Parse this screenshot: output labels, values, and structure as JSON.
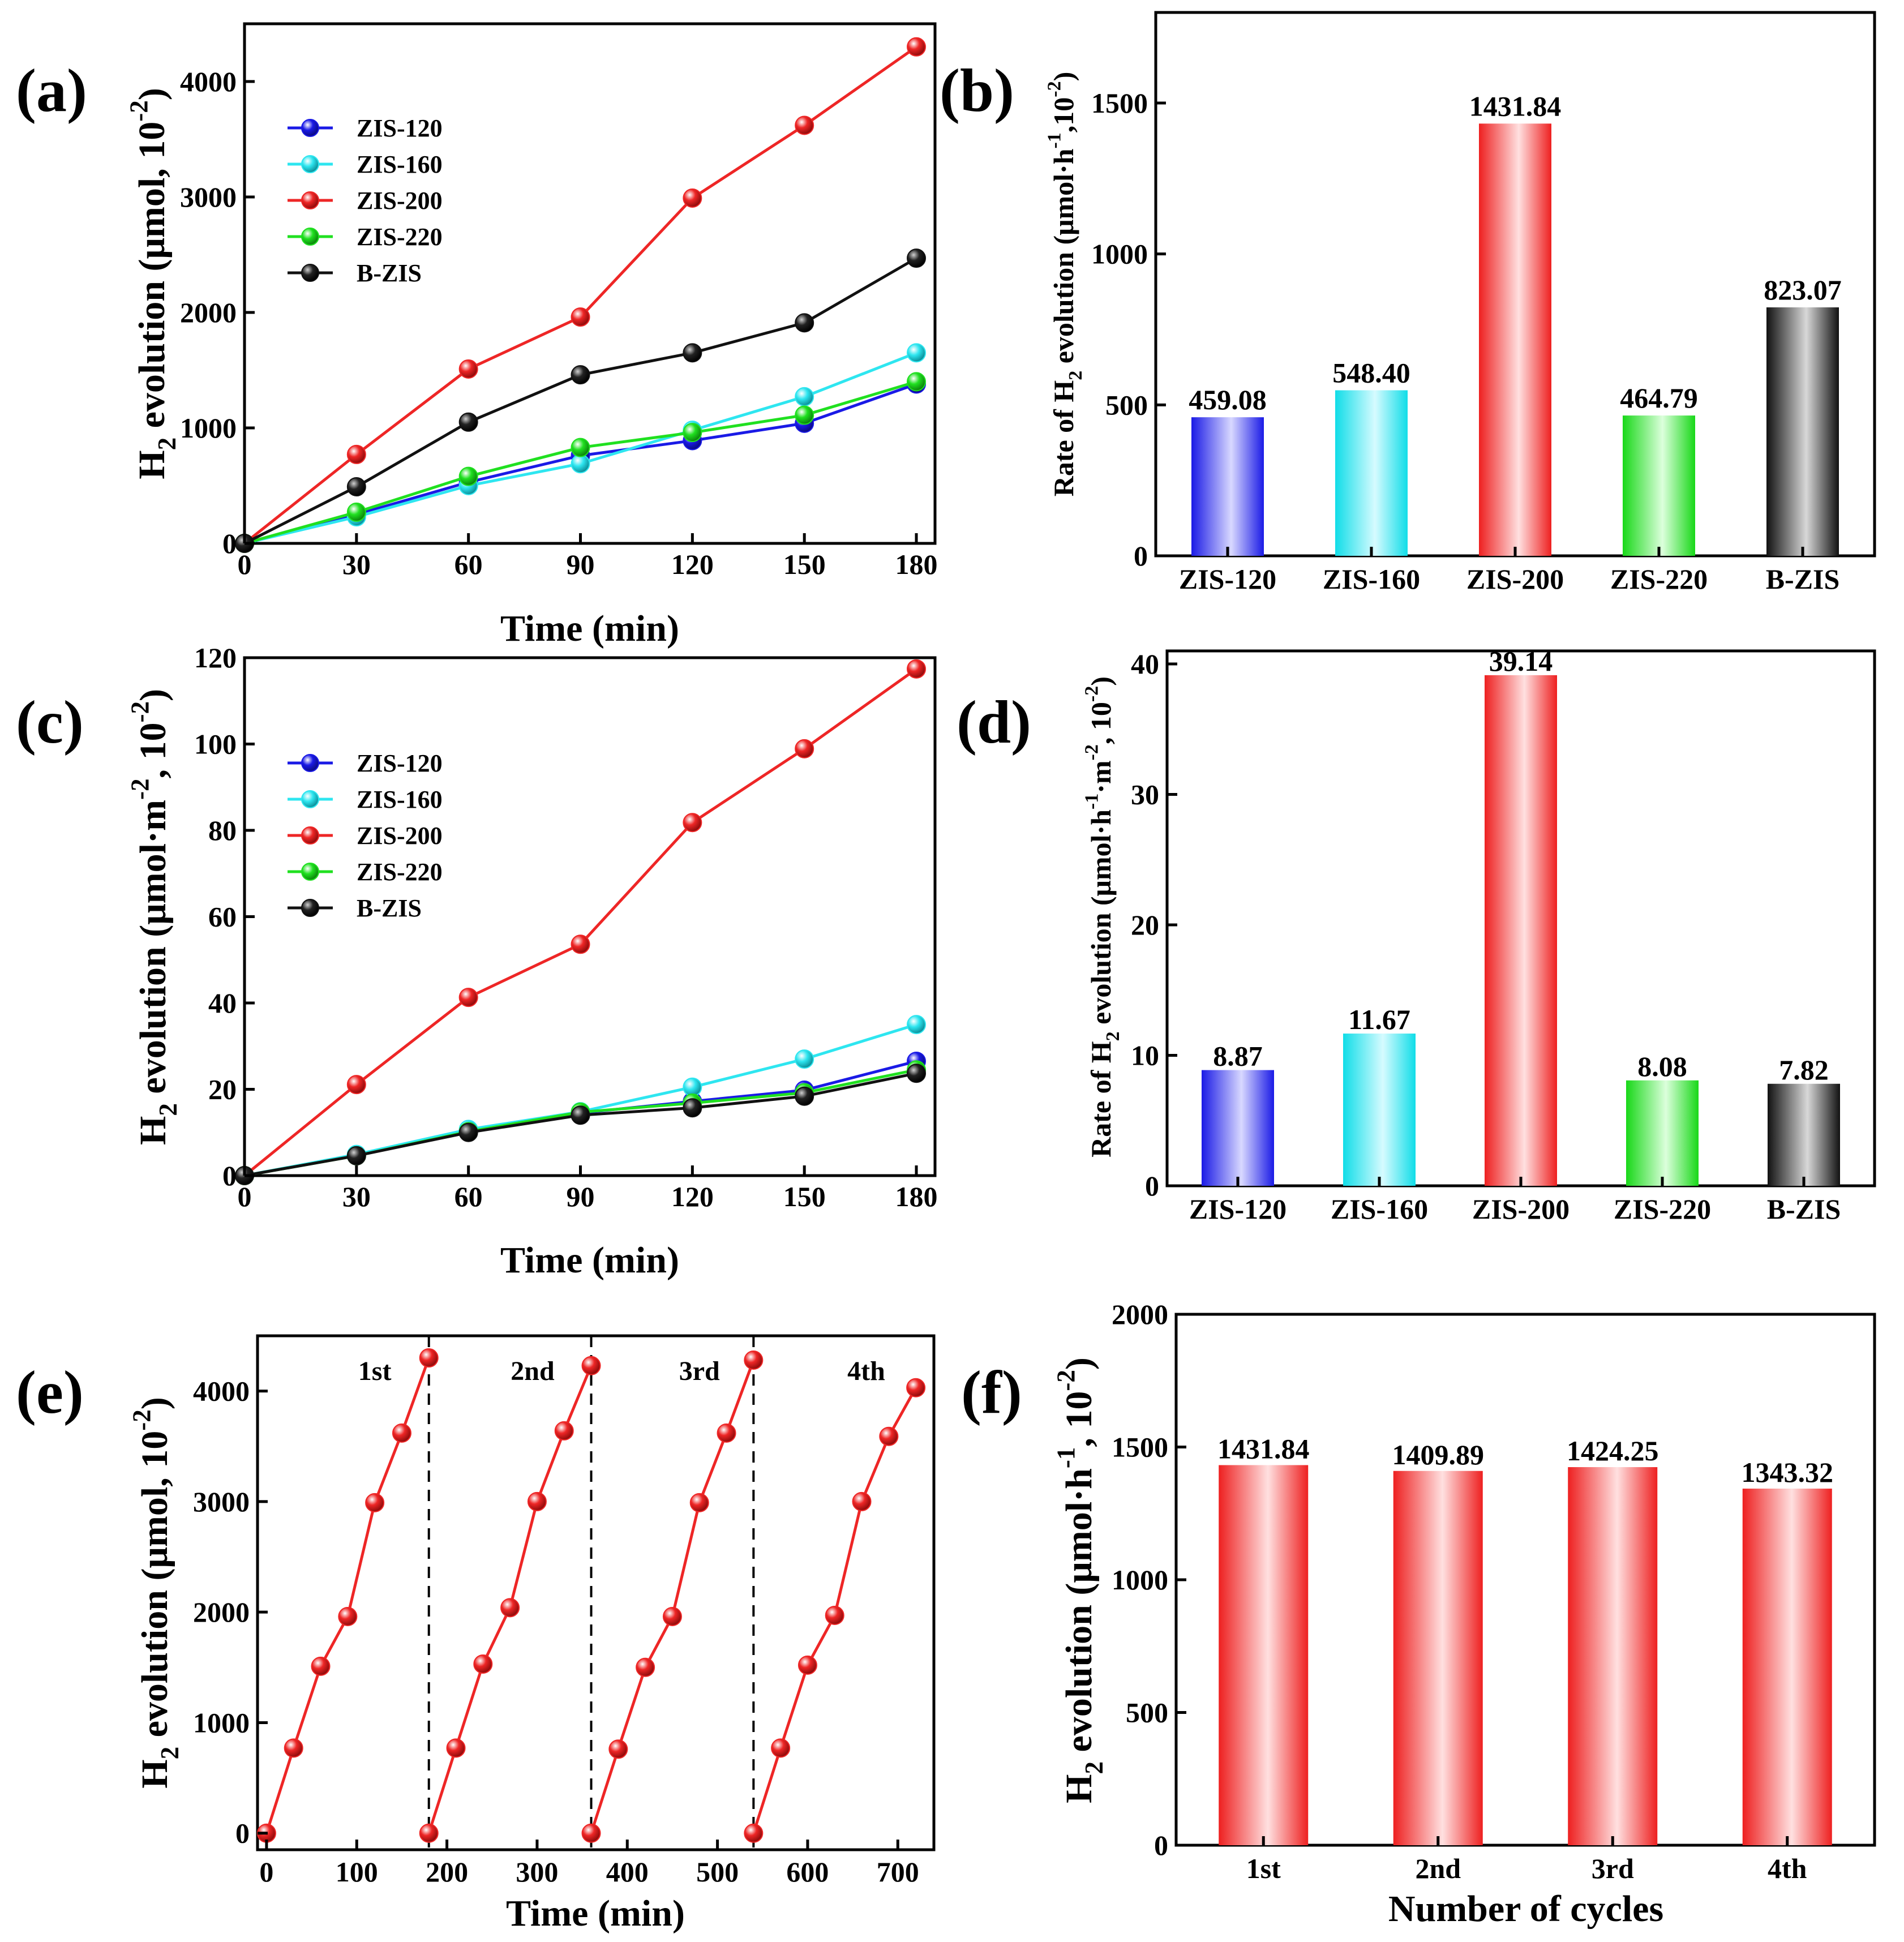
{
  "colors": {
    "ZIS-120": "#1a1ae6",
    "ZIS-160": "#2ee6f0",
    "ZIS-200": "#ee2626",
    "ZIS-220": "#20e020",
    "B-ZIS": "#111111"
  },
  "chart_data": [
    {
      "id": "a",
      "panel_label": "(a)",
      "type": "line",
      "xlabel": "Time (min)",
      "ylabel": "H2 evolution (μmol, 10-2)",
      "x": [
        0,
        30,
        60,
        90,
        120,
        150,
        180
      ],
      "xticks": [
        "0",
        "30",
        "60",
        "90",
        "120",
        "150",
        "180"
      ],
      "yticks": [
        "0",
        "1000",
        "2000",
        "3000",
        "4000"
      ],
      "xlim": [
        0,
        185
      ],
      "ylim": [
        0,
        4500
      ],
      "legend": [
        "ZIS-120",
        "ZIS-160",
        "ZIS-200",
        "ZIS-220",
        "B-ZIS"
      ],
      "series": [
        {
          "name": "ZIS-120",
          "values": [
            0,
            250,
            530,
            760,
            890,
            1040,
            1380
          ]
        },
        {
          "name": "ZIS-160",
          "values": [
            0,
            230,
            500,
            690,
            980,
            1270,
            1650
          ]
        },
        {
          "name": "ZIS-200",
          "values": [
            0,
            770,
            1510,
            1960,
            2990,
            3620,
            4300
          ]
        },
        {
          "name": "ZIS-220",
          "values": [
            0,
            270,
            580,
            830,
            960,
            1110,
            1400
          ]
        },
        {
          "name": "B-ZIS",
          "values": [
            0,
            490,
            1050,
            1460,
            1650,
            1910,
            2470
          ]
        }
      ]
    },
    {
      "id": "b",
      "panel_label": "(b)",
      "type": "bar",
      "xlabel": "",
      "ylabel": "Rate of H2 evolution (μmol·h-1, 10-2)",
      "categories": [
        "ZIS-120",
        "ZIS-160",
        "ZIS-200",
        "ZIS-220",
        "B-ZIS"
      ],
      "values": [
        459.08,
        548.4,
        1431.84,
        464.79,
        823.07
      ],
      "value_labels": [
        "459.08",
        "548.40",
        "1431.84",
        "464.79",
        "823.07"
      ],
      "yticks": [
        "0",
        "500",
        "1000",
        "1500"
      ],
      "ylim": [
        0,
        1800
      ]
    },
    {
      "id": "c",
      "panel_label": "(c)",
      "type": "line",
      "xlabel": "Time (min)",
      "ylabel": "H2 evolution (μmol·m-2, 10-2)",
      "x": [
        0,
        30,
        60,
        90,
        120,
        150,
        180
      ],
      "xticks": [
        "0",
        "30",
        "60",
        "90",
        "120",
        "150",
        "180"
      ],
      "yticks": [
        "0",
        "20",
        "40",
        "60",
        "80",
        "100",
        "120"
      ],
      "xlim": [
        0,
        185
      ],
      "ylim": [
        0,
        120
      ],
      "legend": [
        "ZIS-120",
        "ZIS-160",
        "ZIS-200",
        "ZIS-220",
        "B-ZIS"
      ],
      "series": [
        {
          "name": "ZIS-120",
          "values": [
            0,
            4.8,
            10.5,
            14.5,
            17.2,
            19.8,
            26.5
          ]
        },
        {
          "name": "ZIS-160",
          "values": [
            0,
            4.9,
            10.7,
            14.8,
            20.5,
            27.0,
            35.0
          ]
        },
        {
          "name": "ZIS-200",
          "values": [
            0,
            21.1,
            41.3,
            53.6,
            81.8,
            98.9,
            117.4
          ]
        },
        {
          "name": "ZIS-220",
          "values": [
            0,
            4.6,
            10.2,
            14.7,
            16.8,
            19.2,
            24.5
          ]
        },
        {
          "name": "B-ZIS",
          "values": [
            0,
            4.6,
            10.0,
            14.0,
            15.7,
            18.4,
            23.7
          ]
        }
      ]
    },
    {
      "id": "d",
      "panel_label": "(d)",
      "type": "bar",
      "xlabel": "",
      "ylabel": "Rate of H2 evolution (μmol·h-1·m-2, 10-2)",
      "categories": [
        "ZIS-120",
        "ZIS-160",
        "ZIS-200",
        "ZIS-220",
        "B-ZIS"
      ],
      "values": [
        8.87,
        11.67,
        39.14,
        8.08,
        7.82
      ],
      "value_labels": [
        "8.87",
        "11.67",
        "39.14",
        "8.08",
        "7.82"
      ],
      "yticks": [
        "0",
        "10",
        "20",
        "30",
        "40"
      ],
      "ylim": [
        0,
        41
      ]
    },
    {
      "id": "e",
      "panel_label": "(e)",
      "type": "line",
      "xlabel": "Time (min)",
      "ylabel": "H2 evolution (μmol, 10-2)",
      "xticks": [
        "0",
        "100",
        "200",
        "300",
        "400",
        "500",
        "600",
        "700"
      ],
      "yticks": [
        "0",
        "1000",
        "2000",
        "3000",
        "4000"
      ],
      "xlim": [
        -10,
        740
      ],
      "ylim": [
        -150,
        4500
      ],
      "cycle_labels": [
        "1st",
        "2nd",
        "3rd",
        "4th"
      ],
      "cycle_boundaries": [
        180,
        360,
        540
      ],
      "series": [
        {
          "name": "Cycle 1",
          "x": [
            0,
            30,
            60,
            90,
            120,
            150,
            180
          ],
          "values": [
            0,
            770,
            1510,
            1960,
            2990,
            3620,
            4300
          ]
        },
        {
          "name": "Cycle 2",
          "x": [
            180,
            210,
            240,
            270,
            300,
            330,
            360
          ],
          "values": [
            0,
            770,
            1530,
            2040,
            3000,
            3640,
            4230
          ]
        },
        {
          "name": "Cycle 3",
          "x": [
            360,
            390,
            420,
            450,
            480,
            510,
            540
          ],
          "values": [
            0,
            760,
            1500,
            1960,
            2990,
            3620,
            4280
          ]
        },
        {
          "name": "Cycle 4",
          "x": [
            540,
            570,
            600,
            630,
            660,
            690,
            720
          ],
          "values": [
            0,
            770,
            1520,
            1970,
            3000,
            3590,
            4030
          ]
        }
      ]
    },
    {
      "id": "f",
      "panel_label": "(f)",
      "type": "bar",
      "xlabel": "Number of cycles",
      "ylabel": "H2 evolution (μmol·h-1, 10-2)",
      "categories": [
        "1st",
        "2nd",
        "3rd",
        "4th"
      ],
      "values": [
        1431.84,
        1409.89,
        1424.25,
        1343.32
      ],
      "value_labels": [
        "1431.84",
        "1409.89",
        "1424.25",
        "1343.32"
      ],
      "yticks": [
        "0",
        "500",
        "1000",
        "1500",
        "2000"
      ],
      "ylim": [
        0,
        2000
      ]
    }
  ]
}
